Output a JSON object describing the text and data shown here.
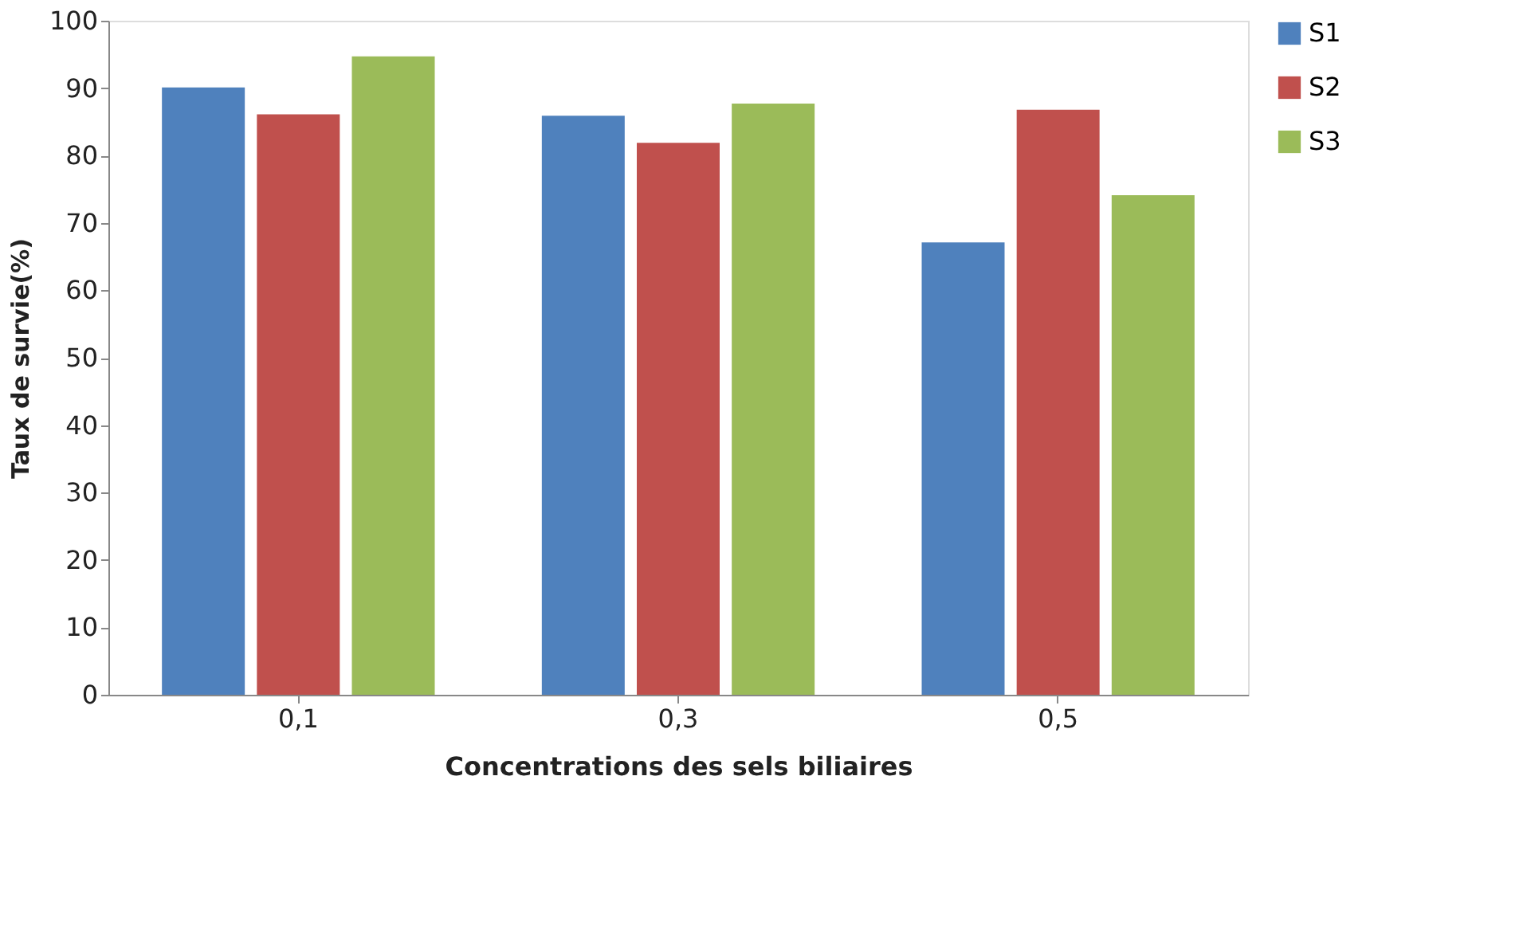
{
  "chart_data": {
    "type": "bar",
    "xlabel": "Concentrations des sels biliaires",
    "ylabel": "Taux de survie(%)",
    "categories": [
      "0,1",
      "0,3",
      "0,5"
    ],
    "series": [
      {
        "name": "S1",
        "color": "#4f81bd",
        "values": [
          90.1,
          85.9,
          67.1
        ]
      },
      {
        "name": "S2",
        "color": "#c0504d",
        "values": [
          86.1,
          81.9,
          86.8
        ]
      },
      {
        "name": "S3",
        "color": "#9bbb59",
        "values": [
          94.7,
          87.7,
          74.1
        ]
      }
    ],
    "ylim": [
      0,
      100
    ],
    "yticks": [
      0,
      10,
      20,
      30,
      40,
      50,
      60,
      70,
      80,
      90,
      100
    ],
    "grid": false,
    "legend": "right"
  }
}
